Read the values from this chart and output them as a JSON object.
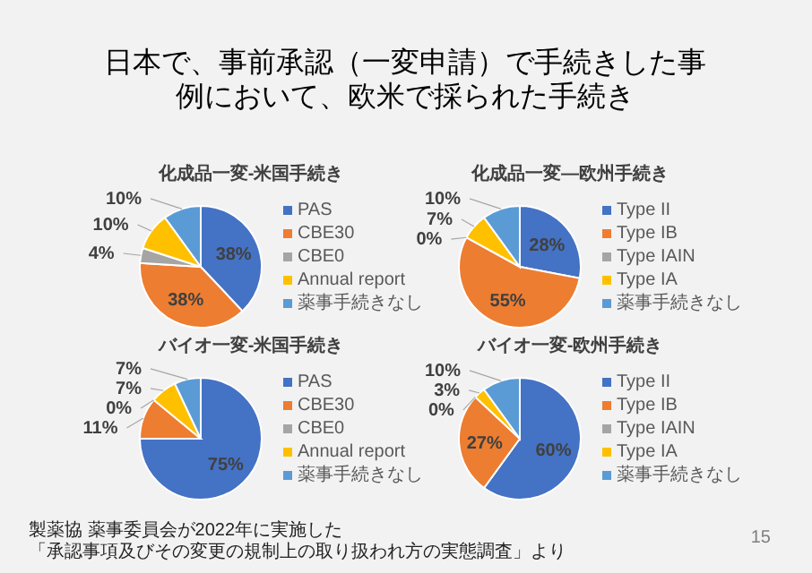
{
  "chart_data": [
    {
      "type": "other",
      "title": "日本で、事前承認（一変申請）で手続きした事例において、欧米で採られた手続き",
      "annotations": [
        "製薬協 薬事委員会が2022年に実施した",
        "「承認事項及びその変更の規制上の取り扱われ方の実態調査」より",
        "15"
      ]
    },
    {
      "type": "pie",
      "title": "化成品一変-米国手続き",
      "categories": [
        "PAS",
        "CBE30",
        "CBE0",
        "Annual report",
        "薬事手続きなし"
      ],
      "values": [
        38,
        38,
        4,
        10,
        10
      ],
      "value_labels": [
        "38%",
        "38%",
        "4%",
        "10%",
        "10%"
      ],
      "colors": [
        "#4472c4",
        "#ed7d31",
        "#a5a5a5",
        "#ffc000",
        "#5b9bd5"
      ],
      "legend": "right"
    },
    {
      "type": "pie",
      "title": "化成品一変—欧州手続き",
      "categories": [
        "Type II",
        "Type IB",
        "Type IAIN",
        "Type IA",
        "薬事手続きなし"
      ],
      "values": [
        28,
        55,
        0,
        7,
        10
      ],
      "value_labels": [
        "28%",
        "55%",
        "0%",
        "7%",
        "10%"
      ],
      "colors": [
        "#4472c4",
        "#ed7d31",
        "#a5a5a5",
        "#ffc000",
        "#5b9bd5"
      ],
      "legend": "right"
    },
    {
      "type": "pie",
      "title": "バイオ一変-米国手続き",
      "categories": [
        "PAS",
        "CBE30",
        "CBE0",
        "Annual report",
        "薬事手続きなし"
      ],
      "values": [
        75,
        11,
        0,
        7,
        7
      ],
      "value_labels": [
        "75%",
        "11%",
        "0%",
        "7%",
        "7%"
      ],
      "colors": [
        "#4472c4",
        "#ed7d31",
        "#a5a5a5",
        "#ffc000",
        "#5b9bd5"
      ],
      "legend": "right"
    },
    {
      "type": "pie",
      "title": "バイオ一変-欧州手続き",
      "categories": [
        "Type II",
        "Type IB",
        "Type IAIN",
        "Type IA",
        "薬事手続きなし"
      ],
      "values": [
        60,
        27,
        0,
        3,
        10
      ],
      "value_labels": [
        "60%",
        "27%",
        "0%",
        "3%",
        "10%"
      ],
      "colors": [
        "#4472c4",
        "#ed7d31",
        "#a5a5a5",
        "#ffc000",
        "#5b9bd5"
      ],
      "legend": "right"
    }
  ]
}
